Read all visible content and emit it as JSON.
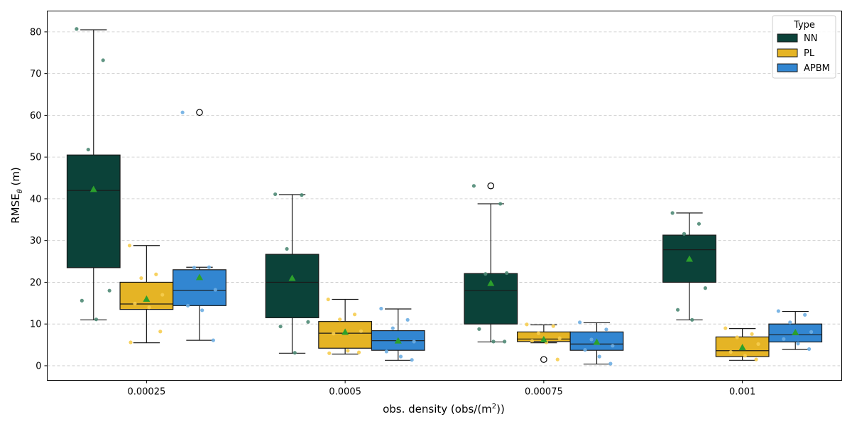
{
  "chart_data": {
    "type": "box",
    "xlabel": "obs. density (obs/(m",
    "xlabel_sup": "2",
    "xlabel_suffix": "))",
    "ylabel": "RMSE",
    "ylabel_sub": "θ",
    "ylabel_suffix": " (m)",
    "ylim": [
      -3.5,
      85
    ],
    "yticks": [
      0,
      10,
      20,
      30,
      40,
      50,
      60,
      70,
      80
    ],
    "grid": "y-dashed",
    "categories": [
      "0.00025",
      "0.0005",
      "0.00075",
      "0.001"
    ],
    "legend": {
      "title": "Type",
      "placement": "top-right",
      "entries": [
        "NN",
        "PL",
        "APBM"
      ]
    },
    "mean_color": "#2ca02c",
    "series": [
      {
        "name": "NN",
        "color": "#0b4239",
        "point_color": "#4f8a76",
        "boxes": [
          {
            "min": 11,
            "q1": 23.5,
            "median": 42,
            "q3": 50.5,
            "max": 80.5,
            "mean": 42.3,
            "outliers": [],
            "points": [
              80.7,
              73.2,
              51.8,
              18.0,
              15.6,
              11.1
            ]
          },
          {
            "min": 3,
            "q1": 11.5,
            "median": 20,
            "q3": 26.7,
            "max": 41,
            "mean": 21.0,
            "outliers": [],
            "points": [
              41.1,
              40.9,
              28.0,
              10.5,
              9.4,
              3.1
            ]
          },
          {
            "min": 5.7,
            "q1": 10,
            "median": 18,
            "q3": 22.1,
            "max": 38.8,
            "mean": 19.8,
            "outliers": [
              43.1
            ],
            "points": [
              43.1,
              38.8,
              22.0,
              22.2,
              8.8,
              5.8,
              5.8
            ]
          },
          {
            "min": 11,
            "q1": 20,
            "median": 27.8,
            "q3": 31.3,
            "max": 36.6,
            "mean": 25.6,
            "outliers": [],
            "points": [
              36.6,
              34.0,
              31.6,
              18.6,
              13.4,
              11.0
            ]
          }
        ]
      },
      {
        "name": "PL",
        "color": "#e5b425",
        "point_color": "#f6cd50",
        "boxes": [
          {
            "min": 5.5,
            "q1": 13.5,
            "median": 14.8,
            "q3": 20,
            "max": 28.8,
            "mean": 16.0,
            "outliers": [],
            "points": [
              28.8,
              21.9,
              21.0,
              17.0,
              14.9,
              14.0,
              8.2,
              5.6
            ]
          },
          {
            "min": 2.8,
            "q1": 4.2,
            "median": 7.8,
            "q3": 10.6,
            "max": 15.9,
            "mean": 8.1,
            "outliers": [],
            "points": [
              15.9,
              12.3,
              11.1,
              8.3,
              7.7,
              3.6,
              3.2,
              3.0
            ]
          },
          {
            "min": 5.5,
            "q1": 5.8,
            "median": 6.4,
            "q3": 8.1,
            "max": 9.8,
            "mean": 6.3,
            "outliers": [
              1.5
            ],
            "points": [
              9.9,
              9.5,
              7.8,
              6.6,
              6.0,
              5.6,
              1.5
            ]
          },
          {
            "min": 1.3,
            "q1": 2.2,
            "median": 3.6,
            "q3": 6.9,
            "max": 8.9,
            "mean": 4.4,
            "outliers": [],
            "points": [
              9.0,
              7.6,
              6.8,
              5.2,
              3.3,
              2.4,
              1.5
            ]
          }
        ]
      },
      {
        "name": "APBM",
        "color": "#3286d1",
        "point_color": "#6eaee2",
        "boxes": [
          {
            "min": 6.1,
            "q1": 14.4,
            "median": 18.1,
            "q3": 23,
            "max": 23.6,
            "mean": 21.2,
            "outliers": [
              60.7
            ],
            "points": [
              60.7,
              23.6,
              23.5,
              18.2,
              14.4,
              13.3,
              6.1
            ]
          },
          {
            "min": 1.3,
            "q1": 3.7,
            "median": 6,
            "q3": 8.4,
            "max": 13.6,
            "mean": 6.0,
            "outliers": [],
            "points": [
              13.7,
              11.0,
              9.0,
              5.8,
              3.4,
              2.2,
              1.4
            ]
          },
          {
            "min": 0.4,
            "q1": 3.7,
            "median": 5.2,
            "q3": 8.1,
            "max": 10.3,
            "mean": 5.7,
            "outliers": [],
            "points": [
              10.4,
              8.7,
              6.3,
              4.8,
              3.8,
              2.2,
              0.5
            ]
          },
          {
            "min": 3.9,
            "q1": 5.7,
            "median": 7.4,
            "q3": 10,
            "max": 13,
            "mean": 8.0,
            "outliers": [],
            "points": [
              13.1,
              12.2,
              10.4,
              8.1,
              6.4,
              5.3,
              4.0
            ]
          }
        ]
      }
    ]
  }
}
